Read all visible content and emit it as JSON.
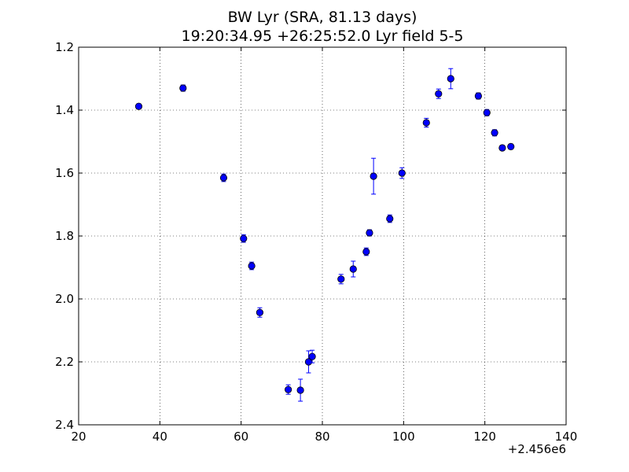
{
  "chart_data": {
    "type": "scatter",
    "title": "BW Lyr (SRA, 81.13 days)",
    "subtitle": "19:20:34.95 +26:25:52.0 Lyr field 5-5",
    "xlabel": "",
    "ylabel": "",
    "x_offset_label": "+2.456e6",
    "xlim": [
      20,
      140
    ],
    "ylim": [
      2.4,
      1.2
    ],
    "y_inverted": true,
    "grid": true,
    "xticks": [
      "20",
      "40",
      "60",
      "80",
      "100",
      "120",
      "140"
    ],
    "yticks": [
      "1.2",
      "1.4",
      "1.6",
      "1.8",
      "2.0",
      "2.2",
      "2.4"
    ],
    "marker_color": "#0000ff",
    "errorbar_color": "#0000ff",
    "points": [
      {
        "x": 34.8,
        "y": 1.388,
        "err": 0.008
      },
      {
        "x": 45.7,
        "y": 1.33,
        "err": 0.01
      },
      {
        "x": 55.7,
        "y": 1.615,
        "err": 0.012
      },
      {
        "x": 60.6,
        "y": 1.808,
        "err": 0.012
      },
      {
        "x": 62.6,
        "y": 1.895,
        "err": 0.012
      },
      {
        "x": 64.6,
        "y": 2.043,
        "err": 0.015
      },
      {
        "x": 71.6,
        "y": 2.288,
        "err": 0.015
      },
      {
        "x": 74.6,
        "y": 2.29,
        "err": 0.035
      },
      {
        "x": 76.6,
        "y": 2.2,
        "err": 0.035
      },
      {
        "x": 77.5,
        "y": 2.183,
        "err": 0.02
      },
      {
        "x": 84.6,
        "y": 1.937,
        "err": 0.015
      },
      {
        "x": 87.6,
        "y": 1.905,
        "err": 0.025
      },
      {
        "x": 90.8,
        "y": 1.85,
        "err": 0.012
      },
      {
        "x": 91.6,
        "y": 1.79,
        "err": 0.01
      },
      {
        "x": 92.6,
        "y": 1.61,
        "err": 0.057
      },
      {
        "x": 96.6,
        "y": 1.745,
        "err": 0.012
      },
      {
        "x": 99.6,
        "y": 1.6,
        "err": 0.017
      },
      {
        "x": 105.6,
        "y": 1.44,
        "err": 0.014
      },
      {
        "x": 108.6,
        "y": 1.348,
        "err": 0.015
      },
      {
        "x": 111.6,
        "y": 1.3,
        "err": 0.032
      },
      {
        "x": 118.4,
        "y": 1.355,
        "err": 0.01
      },
      {
        "x": 120.5,
        "y": 1.408,
        "err": 0.01
      },
      {
        "x": 122.4,
        "y": 1.472,
        "err": 0.01
      },
      {
        "x": 124.3,
        "y": 1.52,
        "err": 0.008
      },
      {
        "x": 126.4,
        "y": 1.516,
        "err": 0.008
      }
    ]
  }
}
